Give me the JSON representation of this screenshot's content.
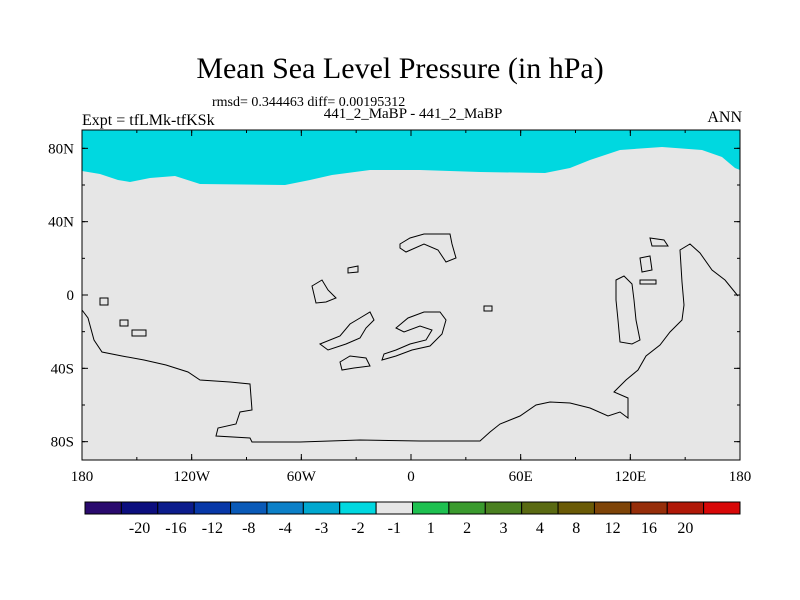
{
  "header": {
    "title": "Mean Sea Level Pressure (in hPa)",
    "stats": "rmsd= 0.344463 diff= 0.00195312",
    "run": "441_2_MaBP - 441_2_MaBP",
    "expt": "Expt = tfLMk-tfKSk",
    "season": "ANN"
  },
  "chart_data": {
    "type": "map-contour",
    "title": "Mean Sea Level Pressure (in hPa)",
    "subtitle": "441_2_MaBP - 441_2_MaBP",
    "x_ticks": [
      "180",
      "120W",
      "60W",
      "0",
      "60E",
      "120E",
      "180"
    ],
    "y_ticks": [
      "80N",
      "40N",
      "0",
      "40S",
      "80S"
    ],
    "xlim": [
      -180,
      180
    ],
    "ylim": [
      -90,
      90
    ],
    "fields": [
      {
        "range": "-2 to -1",
        "color": "#00d8e0",
        "region": "high latitudes north of ~65N"
      },
      {
        "range": "-1 to 1",
        "color": "#e6e6e6",
        "region": "rest of globe"
      }
    ],
    "colorbar": {
      "colors": [
        "#2a0a6e",
        "#0c0e7e",
        "#0c1c8c",
        "#0838a8",
        "#0a5ab8",
        "#0c80c8",
        "#00a8d0",
        "#00d8e0",
        "#e6e6e6",
        "#1ec050",
        "#3a9a2e",
        "#4a8020",
        "#5a6a12",
        "#6a5a06",
        "#7e4408",
        "#962e0a",
        "#b01808",
        "#d80808"
      ],
      "labels": [
        "-20",
        "-16",
        "-12",
        "-8",
        "-4",
        "-3",
        "-2",
        "-1",
        "1",
        "2",
        "3",
        "4",
        "8",
        "12",
        "16",
        "20"
      ]
    }
  }
}
